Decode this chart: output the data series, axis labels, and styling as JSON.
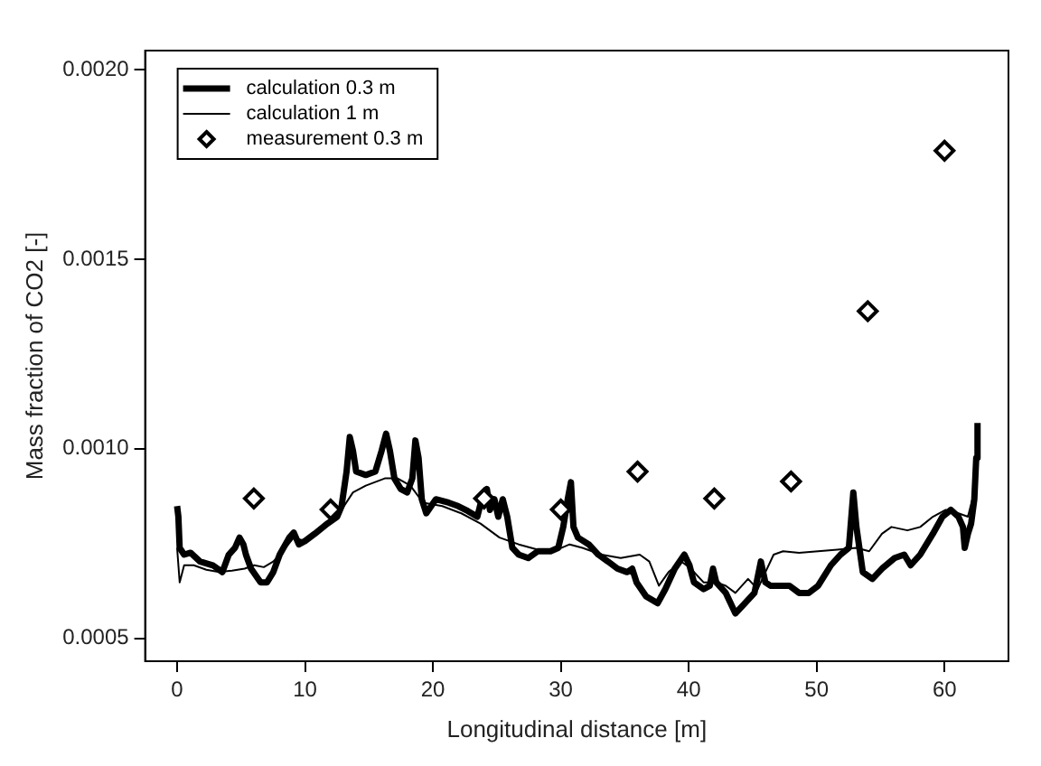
{
  "chart_data": {
    "type": "line",
    "xlabel": "Longitudinal distance [m]",
    "ylabel": "Mass fraction of CO2 [-]",
    "xlim": [
      -2.5,
      65
    ],
    "xticks": [
      0,
      10,
      20,
      30,
      40,
      50,
      60
    ],
    "ylim": [
      0.00044,
      0.00205
    ],
    "yticks": [
      {
        "value": 0.0005,
        "label": "0.0005"
      },
      {
        "value": 0.001,
        "label": "0.0010"
      },
      {
        "value": 0.0015,
        "label": "0.0015"
      },
      {
        "value": 0.002,
        "label": "0.0020"
      }
    ],
    "grid": false,
    "legend": "top left",
    "marker": "none",
    "line_style": "solid",
    "series": [
      {
        "name": "calculation 0.3 m",
        "color": "#000000",
        "x": [
          0,
          0.1,
          0.2,
          0.55,
          1.05,
          1.79,
          2.79,
          3.54,
          4.04,
          4.53,
          4.88,
          5.18,
          5.38,
          5.78,
          6.53,
          7.03,
          7.52,
          8.02,
          8.77,
          9.12,
          9.52,
          10.01,
          10.76,
          11.76,
          12.51,
          12.86,
          13.25,
          13.5,
          13.75,
          14.0,
          14.75,
          15.5,
          15.99,
          16.34,
          16.64,
          16.99,
          17.49,
          17.99,
          18.39,
          18.63,
          18.88,
          19.13,
          19.48,
          20.23,
          21.23,
          21.97,
          22.72,
          23.47,
          23.82,
          24.22,
          24.46,
          24.81,
          25.11,
          25.46,
          25.81,
          26.21,
          26.71,
          27.45,
          28.2,
          29.2,
          29.8,
          30.19,
          30.54,
          30.79,
          30.99,
          31.34,
          32.19,
          32.93,
          33.68,
          34.43,
          35.18,
          35.58,
          35.92,
          36.67,
          37.57,
          38.17,
          38.91,
          39.66,
          40.06,
          40.41,
          41.16,
          41.65,
          41.9,
          42.15,
          42.9,
          43.65,
          44.39,
          45.14,
          45.64,
          45.99,
          46.39,
          47.13,
          47.88,
          48.63,
          49.38,
          50.12,
          51.12,
          51.87,
          52.52,
          52.87,
          53.11,
          53.61,
          54.36,
          55.11,
          56.1,
          56.85,
          57.35,
          58.1,
          59.09,
          59.84,
          60.49,
          61.09,
          61.44,
          61.58,
          61.83,
          62.08,
          62.33,
          62.48,
          62.58
        ],
        "values": [
          0.000849,
          0.000821,
          0.000739,
          0.000721,
          0.000726,
          0.000703,
          0.000693,
          0.000675,
          0.000721,
          0.000739,
          0.000766,
          0.000748,
          0.000721,
          0.000684,
          0.000648,
          0.000648,
          0.000675,
          0.000721,
          0.000766,
          0.000779,
          0.000748,
          0.000757,
          0.000776,
          0.000803,
          0.000821,
          0.000849,
          0.00094,
          0.001031,
          0.000995,
          0.00094,
          0.000931,
          0.00094,
          0.000995,
          0.00104,
          0.000995,
          0.000922,
          0.000894,
          0.000885,
          0.000922,
          0.001022,
          0.000976,
          0.000867,
          0.00083,
          0.000867,
          0.000858,
          0.000849,
          0.000836,
          0.000821,
          0.000867,
          0.000894,
          0.000839,
          0.000867,
          0.000821,
          0.000867,
          0.000821,
          0.000739,
          0.000721,
          0.000712,
          0.00073,
          0.00073,
          0.000739,
          0.000794,
          0.000867,
          0.000912,
          0.000794,
          0.000766,
          0.000748,
          0.000721,
          0.000703,
          0.000684,
          0.000675,
          0.000684,
          0.000648,
          0.000611,
          0.000593,
          0.00063,
          0.000684,
          0.000721,
          0.000693,
          0.000648,
          0.00063,
          0.000639,
          0.000684,
          0.000648,
          0.00062,
          0.000566,
          0.000593,
          0.00062,
          0.000703,
          0.000648,
          0.000639,
          0.000639,
          0.000639,
          0.00062,
          0.00062,
          0.000639,
          0.000693,
          0.000721,
          0.000739,
          0.000885,
          0.000794,
          0.000675,
          0.000657,
          0.000684,
          0.000712,
          0.000721,
          0.000693,
          0.000721,
          0.000776,
          0.000821,
          0.000839,
          0.000821,
          0.000794,
          0.000739,
          0.000776,
          0.000803,
          0.000867,
          0.000976,
          0.001068
        ]
      },
      {
        "name": "calculation 1 m",
        "color": "#000000",
        "x": [
          0,
          0.2,
          0.55,
          1.3,
          2.29,
          3.29,
          4.29,
          5.28,
          6.03,
          6.78,
          7.52,
          8.27,
          9.12,
          10.01,
          11.26,
          12.51,
          13.75,
          14.75,
          16.24,
          17.24,
          18.24,
          19.23,
          20.73,
          22.22,
          23.72,
          25.21,
          26.71,
          28.2,
          29.7,
          30.69,
          31.69,
          33.18,
          34.68,
          36.17,
          36.92,
          37.67,
          38.42,
          39.41,
          40.16,
          41.16,
          42.15,
          42.9,
          43.65,
          44.64,
          45.39,
          45.89,
          46.64,
          47.38,
          48.63,
          50.12,
          51.62,
          53.11,
          54.11,
          55.11,
          55.85,
          57.1,
          58.1,
          59.09,
          60.09,
          61.09,
          61.83,
          62.18
        ],
        "values": [
          0.000739,
          0.000648,
          0.000693,
          0.000693,
          0.000681,
          0.000675,
          0.000679,
          0.000684,
          0.000693,
          0.000688,
          0.000703,
          0.00073,
          0.000766,
          0.000757,
          0.000785,
          0.000821,
          0.000885,
          0.000903,
          0.000922,
          0.000922,
          0.000903,
          0.000858,
          0.000849,
          0.00083,
          0.000803,
          0.000766,
          0.000748,
          0.000734,
          0.000734,
          0.000748,
          0.000739,
          0.000721,
          0.000712,
          0.000721,
          0.000703,
          0.000639,
          0.000675,
          0.000703,
          0.000684,
          0.000648,
          0.000648,
          0.000639,
          0.00062,
          0.000657,
          0.00063,
          0.000667,
          0.000721,
          0.00073,
          0.000726,
          0.00073,
          0.000734,
          0.000739,
          0.00073,
          0.000776,
          0.000794,
          0.000785,
          0.000794,
          0.000821,
          0.000839,
          0.00083,
          0.000821,
          0.000867
        ]
      },
      {
        "name": "measurement 0.3 m",
        "color": "#000000",
        "type": "scatter",
        "marker": "diamond",
        "x": [
          6,
          12,
          24,
          30,
          36,
          42,
          48,
          54,
          60
        ],
        "values": [
          0.000869,
          0.00084,
          0.000869,
          0.00084,
          0.00094,
          0.000869,
          0.000914,
          0.001363,
          0.001786
        ]
      }
    ]
  }
}
